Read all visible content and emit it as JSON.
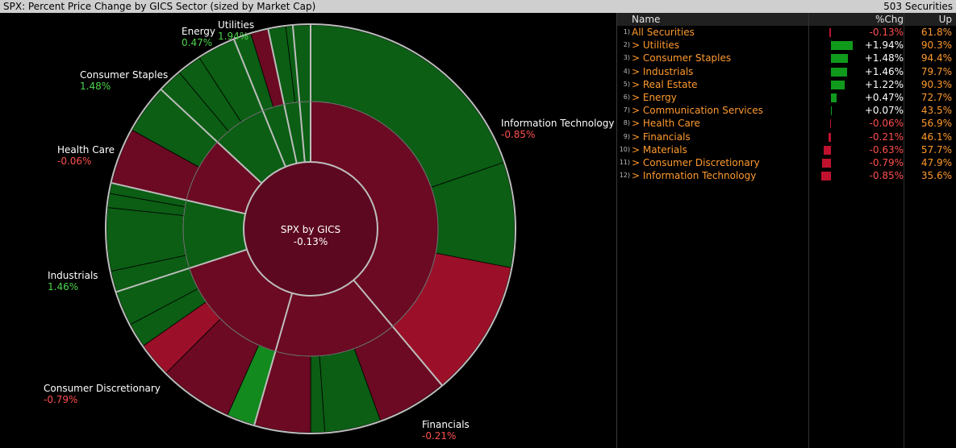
{
  "header": {
    "title": "SPX: Percent Price Change by GICS Sector (sized by Market Cap)",
    "count": "503 Securities"
  },
  "center": {
    "title": "SPX by GICS",
    "value": "-0.13%"
  },
  "sector_labels": [
    {
      "name": "Information Technology",
      "value": "-0.85%",
      "sign": "neg"
    },
    {
      "name": "Energy",
      "value": "0.47%",
      "sign": "pos"
    },
    {
      "name": "Utilities",
      "value": "1.94%",
      "sign": "pos"
    },
    {
      "name": "Consumer Staples",
      "value": "1.48%",
      "sign": "pos"
    },
    {
      "name": "Health Care",
      "value": "-0.06%",
      "sign": "neg"
    },
    {
      "name": "Industrials",
      "value": "1.46%",
      "sign": "pos"
    },
    {
      "name": "Consumer Discretionary",
      "value": "-0.79%",
      "sign": "neg"
    },
    {
      "name": "Financials",
      "value": "-0.21%",
      "sign": "neg"
    }
  ],
  "table": {
    "columns": {
      "name": "Name",
      "chg": "%Chg",
      "up": "Up"
    },
    "rows": [
      {
        "num": "1)",
        "name": "All Securities",
        "chg": "-0.13%",
        "up": "61.8%",
        "value": -0.13
      },
      {
        "num": "2)",
        "name": "> Utilities",
        "chg": "+1.94%",
        "up": "90.3%",
        "value": 1.94
      },
      {
        "num": "3)",
        "name": "> Consumer Staples",
        "chg": "+1.48%",
        "up": "94.4%",
        "value": 1.48
      },
      {
        "num": "4)",
        "name": "> Industrials",
        "chg": "+1.46%",
        "up": "79.7%",
        "value": 1.46
      },
      {
        "num": "5)",
        "name": "> Real Estate",
        "chg": "+1.22%",
        "up": "90.3%",
        "value": 1.22
      },
      {
        "num": "6)",
        "name": "> Energy",
        "chg": "+0.47%",
        "up": "72.7%",
        "value": 0.47
      },
      {
        "num": "7)",
        "name": "> Communication Services",
        "chg": "+0.07%",
        "up": "43.5%",
        "value": 0.07
      },
      {
        "num": "8)",
        "name": "> Health Care",
        "chg": "-0.06%",
        "up": "56.9%",
        "value": -0.06
      },
      {
        "num": "9)",
        "name": "> Financials",
        "chg": "-0.21%",
        "up": "46.1%",
        "value": -0.21
      },
      {
        "num": "10)",
        "name": "> Materials",
        "chg": "-0.63%",
        "up": "57.7%",
        "value": -0.63
      },
      {
        "num": "11)",
        "name": "> Consumer Discretionary",
        "chg": "-0.79%",
        "up": "47.9%",
        "value": -0.79
      },
      {
        "num": "12)",
        "name": "> Information Technology",
        "chg": "-0.85%",
        "up": "35.6%",
        "value": -0.85
      }
    ]
  },
  "chart_data": {
    "type": "sunburst",
    "root": {
      "name": "SPX by GICS",
      "value": -0.13
    },
    "sectors": [
      {
        "name": "Information Technology",
        "change": -0.85
      },
      {
        "name": "Financials",
        "change": -0.21
      },
      {
        "name": "Consumer Discretionary",
        "change": -0.79
      },
      {
        "name": "Industrials",
        "change": 1.46
      },
      {
        "name": "Health Care",
        "change": -0.06
      },
      {
        "name": "Consumer Staples",
        "change": 1.48
      },
      {
        "name": "Energy",
        "change": 0.47
      },
      {
        "name": "Utilities",
        "change": 1.94
      }
    ],
    "colors": {
      "positive": "#0b5e14",
      "negative": "#6b0a22",
      "strong_negative": "#9b1028",
      "bright_positive": "#138a1e"
    }
  }
}
